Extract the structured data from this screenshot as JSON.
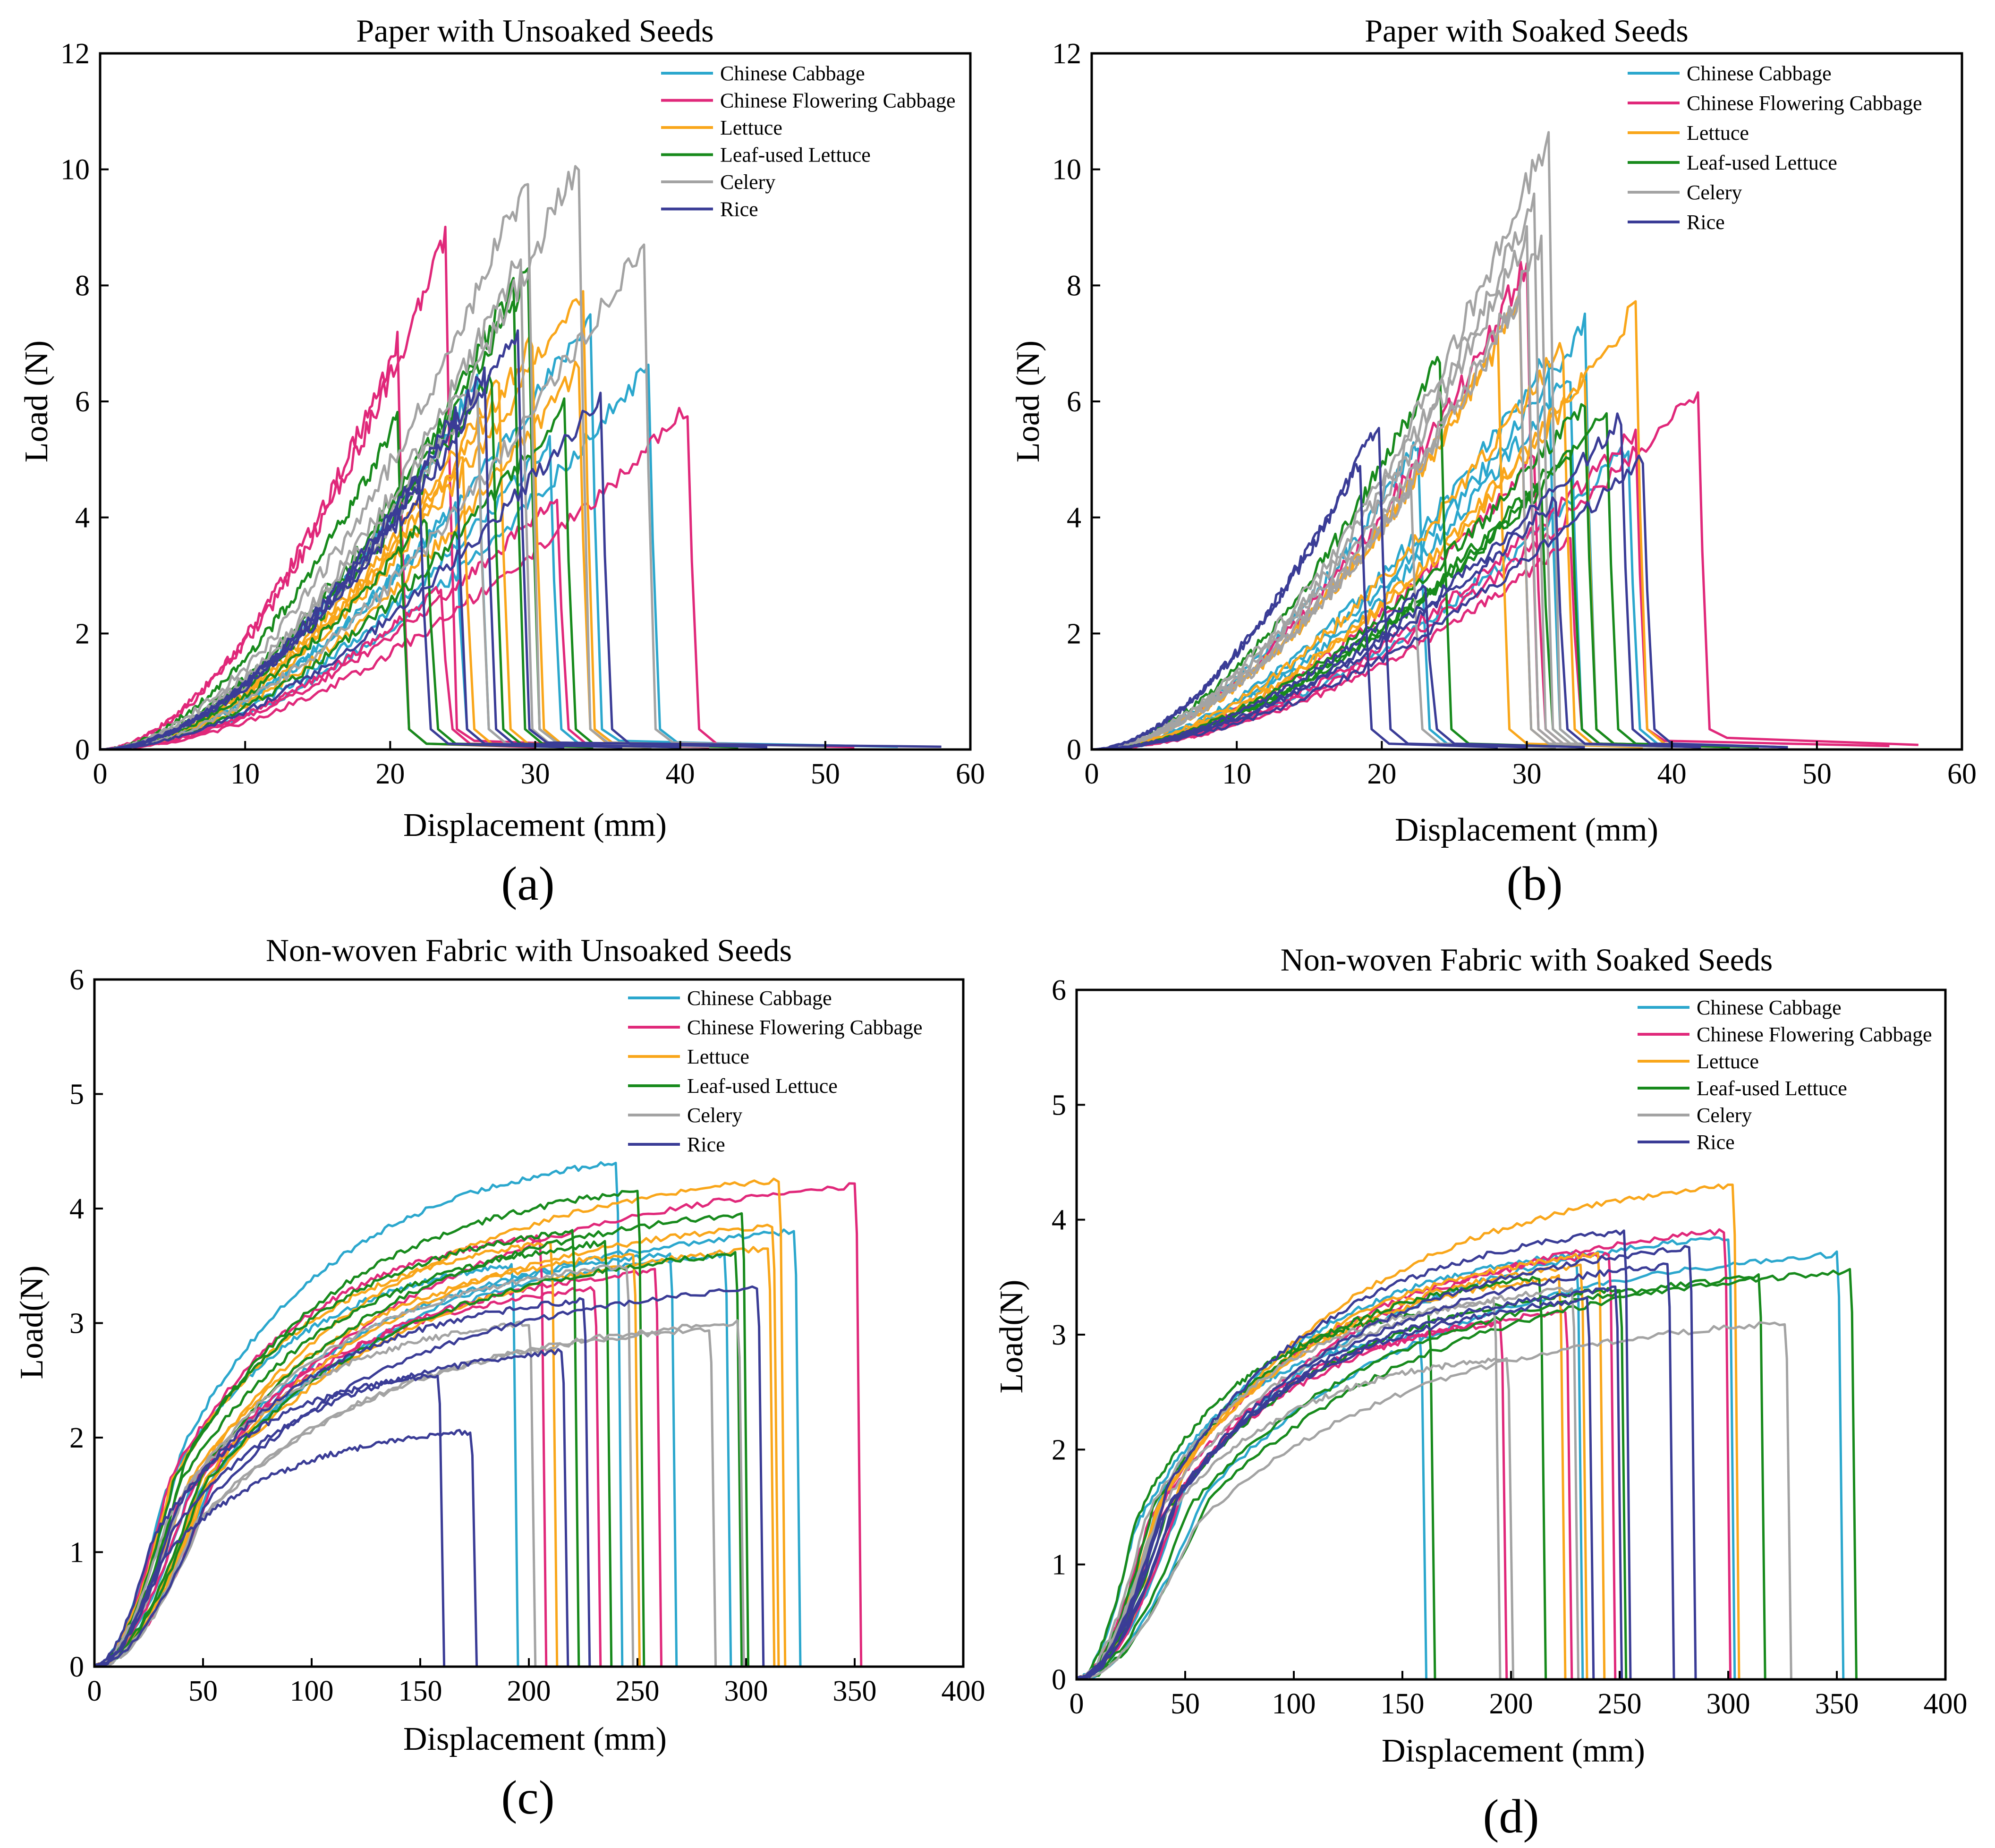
{
  "colors": {
    "Chinese Cabbage": "#2ba7cd",
    "Chinese Flowering Cabbage": "#e0287a",
    "Lettuce": "#f9a61a",
    "Leaf-used Lettuce": "#178a1c",
    "Celery": "#a3a3a3",
    "Rice": "#3a3c96"
  },
  "chart_data": [
    {
      "panel": "(a)",
      "type": "line",
      "title": "Paper with Unsoaked Seeds",
      "xlabel": "Displacement (mm)",
      "ylabel": "Load (N)",
      "xlim": [
        0,
        60
      ],
      "ylim": [
        0,
        12
      ],
      "xticks": [
        0,
        10,
        20,
        30,
        40,
        50,
        60
      ],
      "yticks": [
        0,
        2,
        4,
        6,
        8,
        10,
        12
      ],
      "grid": false,
      "legend_position": "top-right",
      "legend": [
        "Chinese Cabbage",
        "Chinese Flowering Cabbage",
        "Lettuce",
        "Leaf-used Lettuce",
        "Celery",
        "Rice"
      ],
      "series": [
        {
          "group": "Chinese Cabbage",
          "break_x": 33.8,
          "peak": 7.5,
          "tail": 0.15,
          "end_x": 50
        },
        {
          "group": "Chinese Cabbage",
          "break_x": 37.8,
          "peak": 6.6,
          "tail": 0.12,
          "end_x": 55
        },
        {
          "group": "Chinese Cabbage",
          "break_x": 26.0,
          "peak": 6.4,
          "tail": 0.1,
          "end_x": 40
        },
        {
          "group": "Chinese Cabbage",
          "break_x": 24.5,
          "peak": 4.2,
          "tail": 0.1,
          "end_x": 36
        },
        {
          "group": "Chinese Cabbage",
          "break_x": 31.0,
          "peak": 5.3,
          "tail": 0.1,
          "end_x": 42
        },
        {
          "group": "Chinese Flowering Cabbage",
          "break_x": 23.8,
          "peak": 8.8,
          "tail": 0.15,
          "end_x": 36
        },
        {
          "group": "Chinese Flowering Cabbage",
          "break_x": 20.5,
          "peak": 7.0,
          "tail": 0.1,
          "end_x": 30
        },
        {
          "group": "Chinese Flowering Cabbage",
          "break_x": 40.5,
          "peak": 5.9,
          "tail": 0.1,
          "end_x": 52
        },
        {
          "group": "Chinese Flowering Cabbage",
          "break_x": 31.5,
          "peak": 4.4,
          "tail": 0.1,
          "end_x": 42
        },
        {
          "group": "Chinese Flowering Cabbage",
          "break_x": 23.5,
          "peak": 2.8,
          "tail": 0.1,
          "end_x": 34
        },
        {
          "group": "Lettuce",
          "break_x": 33.3,
          "peak": 8.0,
          "tail": 0.12,
          "end_x": 46
        },
        {
          "group": "Lettuce",
          "break_x": 29.8,
          "peak": 7.0,
          "tail": 0.1,
          "end_x": 40
        },
        {
          "group": "Lettuce",
          "break_x": 33.0,
          "peak": 6.6,
          "tail": 0.1,
          "end_x": 44
        },
        {
          "group": "Lettuce",
          "break_x": 27.5,
          "peak": 6.3,
          "tail": 0.1,
          "end_x": 38
        },
        {
          "group": "Lettuce",
          "break_x": 25.0,
          "peak": 5.0,
          "tail": 0.1,
          "end_x": 38
        },
        {
          "group": "Leaf-used Lettuce",
          "break_x": 29.5,
          "peak": 8.2,
          "tail": 0.12,
          "end_x": 42
        },
        {
          "group": "Leaf-used Lettuce",
          "break_x": 28.5,
          "peak": 8.0,
          "tail": 0.1,
          "end_x": 40
        },
        {
          "group": "Leaf-used Lettuce",
          "break_x": 20.5,
          "peak": 5.7,
          "tail": 0.1,
          "end_x": 32
        },
        {
          "group": "Leaf-used Lettuce",
          "break_x": 32.0,
          "peak": 5.9,
          "tail": 0.1,
          "end_x": 44
        },
        {
          "group": "Leaf-used Lettuce",
          "break_x": 27.0,
          "peak": 6.5,
          "tail": 0.1,
          "end_x": 38
        },
        {
          "group": "Leaf-used Lettuce",
          "break_x": 22.5,
          "peak": 4.0,
          "tail": 0.1,
          "end_x": 34
        },
        {
          "group": "Celery",
          "break_x": 33.0,
          "peak": 10.2,
          "tail": 0.12,
          "end_x": 46
        },
        {
          "group": "Celery",
          "break_x": 29.5,
          "peak": 9.9,
          "tail": 0.12,
          "end_x": 42
        },
        {
          "group": "Celery",
          "break_x": 37.5,
          "peak": 8.8,
          "tail": 0.12,
          "end_x": 50
        },
        {
          "group": "Celery",
          "break_x": 29.0,
          "peak": 8.5,
          "tail": 0.1,
          "end_x": 40
        },
        {
          "group": "Celery",
          "break_x": 26.0,
          "peak": 6.2,
          "tail": 0.1,
          "end_x": 38
        },
        {
          "group": "Rice",
          "break_x": 28.8,
          "peak": 7.2,
          "tail": 0.12,
          "end_x": 58
        },
        {
          "group": "Rice",
          "break_x": 34.5,
          "peak": 6.1,
          "tail": 0.1,
          "end_x": 46
        },
        {
          "group": "Rice",
          "break_x": 26.5,
          "peak": 6.5,
          "tail": 0.1,
          "end_x": 40
        },
        {
          "group": "Rice",
          "break_x": 24.5,
          "peak": 5.8,
          "tail": 0.1,
          "end_x": 36
        },
        {
          "group": "Rice",
          "break_x": 22.0,
          "peak": 4.6,
          "tail": 0.1,
          "end_x": 32
        }
      ]
    },
    {
      "panel": "(b)",
      "type": "line",
      "title": "Paper with Soaked Seeds",
      "xlabel": "Displacement (mm)",
      "ylabel": "Load (N)",
      "xlim": [
        0,
        60
      ],
      "ylim": [
        0,
        12
      ],
      "xticks": [
        0,
        10,
        20,
        30,
        40,
        50,
        60
      ],
      "yticks": [
        0,
        2,
        4,
        6,
        8,
        10,
        12
      ],
      "grid": false,
      "legend_position": "top-right",
      "legend": [
        "Chinese Cabbage",
        "Chinese Flowering Cabbage",
        "Lettuce",
        "Leaf-used Lettuce",
        "Celery",
        "Rice"
      ],
      "series": [
        {
          "group": "Chinese Cabbage",
          "break_x": 34.0,
          "peak": 7.3,
          "tail": 0.1,
          "end_x": 44
        },
        {
          "group": "Chinese Cabbage",
          "break_x": 33.0,
          "peak": 6.5,
          "tail": 0.1,
          "end_x": 42
        },
        {
          "group": "Chinese Cabbage",
          "break_x": 22.5,
          "peak": 5.3,
          "tail": 0.1,
          "end_x": 32
        },
        {
          "group": "Chinese Cabbage",
          "break_x": 31.5,
          "peak": 6.8,
          "tail": 0.1,
          "end_x": 42
        },
        {
          "group": "Chinese Cabbage",
          "break_x": 37.0,
          "peak": 5.2,
          "tail": 0.1,
          "end_x": 48
        },
        {
          "group": "Chinese Flowering Cabbage",
          "break_x": 41.8,
          "peak": 6.2,
          "tail": 0.2,
          "end_x": 57
        },
        {
          "group": "Chinese Flowering Cabbage",
          "break_x": 30.0,
          "peak": 8.4,
          "tail": 0.1,
          "end_x": 40
        },
        {
          "group": "Chinese Flowering Cabbage",
          "break_x": 37.5,
          "peak": 5.5,
          "tail": 0.15,
          "end_x": 55
        },
        {
          "group": "Chinese Flowering Cabbage",
          "break_x": 30.5,
          "peak": 5.0,
          "tail": 0.1,
          "end_x": 42
        },
        {
          "group": "Chinese Flowering Cabbage",
          "break_x": 33.0,
          "peak": 3.6,
          "tail": 0.1,
          "end_x": 44
        },
        {
          "group": "Lettuce",
          "break_x": 37.5,
          "peak": 7.6,
          "tail": 0.1,
          "end_x": 48
        },
        {
          "group": "Lettuce",
          "break_x": 29.5,
          "peak": 7.7,
          "tail": 0.1,
          "end_x": 40
        },
        {
          "group": "Lettuce",
          "break_x": 28.0,
          "peak": 7.0,
          "tail": 0.1,
          "end_x": 38
        },
        {
          "group": "Lettuce",
          "break_x": 32.5,
          "peak": 7.0,
          "tail": 0.1,
          "end_x": 42
        },
        {
          "group": "Lettuce",
          "break_x": 34.0,
          "peak": 6.5,
          "tail": 0.1,
          "end_x": 44
        },
        {
          "group": "Leaf-used Lettuce",
          "break_x": 24.0,
          "peak": 6.8,
          "tail": 0.1,
          "end_x": 34
        },
        {
          "group": "Leaf-used Lettuce",
          "break_x": 34.0,
          "peak": 6.0,
          "tail": 0.1,
          "end_x": 44
        },
        {
          "group": "Leaf-used Lettuce",
          "break_x": 33.0,
          "peak": 5.2,
          "tail": 0.1,
          "end_x": 42
        },
        {
          "group": "Leaf-used Lettuce",
          "break_x": 31.0,
          "peak": 4.5,
          "tail": 0.1,
          "end_x": 40
        },
        {
          "group": "Leaf-used Lettuce",
          "break_x": 35.5,
          "peak": 5.8,
          "tail": 0.1,
          "end_x": 46
        },
        {
          "group": "Celery",
          "break_x": 31.5,
          "peak": 10.6,
          "tail": 0.1,
          "end_x": 42
        },
        {
          "group": "Celery",
          "break_x": 30.5,
          "peak": 9.5,
          "tail": 0.1,
          "end_x": 40
        },
        {
          "group": "Celery",
          "break_x": 30.0,
          "peak": 8.9,
          "tail": 0.1,
          "end_x": 40
        },
        {
          "group": "Celery",
          "break_x": 31.0,
          "peak": 8.7,
          "tail": 0.1,
          "end_x": 42
        },
        {
          "group": "Celery",
          "break_x": 29.5,
          "peak": 7.8,
          "tail": 0.1,
          "end_x": 40
        },
        {
          "group": "Celery",
          "break_x": 22.0,
          "peak": 4.5,
          "tail": 0.1,
          "end_x": 32
        },
        {
          "group": "Rice",
          "break_x": 19.8,
          "peak": 5.7,
          "tail": 0.1,
          "end_x": 30
        },
        {
          "group": "Rice",
          "break_x": 18.5,
          "peak": 5.0,
          "tail": 0.1,
          "end_x": 28
        },
        {
          "group": "Rice",
          "break_x": 36.5,
          "peak": 5.7,
          "tail": 0.1,
          "end_x": 48
        },
        {
          "group": "Rice",
          "break_x": 38.0,
          "peak": 5.0,
          "tail": 0.1,
          "end_x": 48
        },
        {
          "group": "Rice",
          "break_x": 32.0,
          "peak": 4.3,
          "tail": 0.1,
          "end_x": 42
        },
        {
          "group": "Rice",
          "break_x": 23.0,
          "peak": 2.8,
          "tail": 0.1,
          "end_x": 34
        }
      ]
    },
    {
      "panel": "(c)",
      "type": "line",
      "title": "Non-woven Fabric with Unsoaked Seeds",
      "xlabel": "Displacement (mm)",
      "ylabel": "Load(N)",
      "xlim": [
        0,
        400
      ],
      "ylim": [
        0,
        6
      ],
      "xticks": [
        0,
        50,
        100,
        150,
        200,
        250,
        300,
        350,
        400
      ],
      "yticks": [
        0,
        1,
        2,
        3,
        4,
        5,
        6
      ],
      "grid": false,
      "legend_position": "top-right",
      "legend": [
        "Chinese Cabbage",
        "Chinese Flowering Cabbage",
        "Lettuce",
        "Leaf-used Lettuce",
        "Celery",
        "Rice"
      ],
      "series": [
        {
          "group": "Chinese Cabbage",
          "break_x": 240,
          "peak": 4.4
        },
        {
          "group": "Chinese Cabbage",
          "break_x": 322,
          "peak": 3.8
        },
        {
          "group": "Chinese Cabbage",
          "break_x": 265,
          "peak": 3.6
        },
        {
          "group": "Chinese Cabbage",
          "break_x": 290,
          "peak": 3.6
        },
        {
          "group": "Chinese Cabbage",
          "break_x": 192,
          "peak": 3.5
        },
        {
          "group": "Chinese Flowering Cabbage",
          "break_x": 350,
          "peak": 4.2
        },
        {
          "group": "Chinese Flowering Cabbage",
          "break_x": 258,
          "peak": 3.45
        },
        {
          "group": "Chinese Flowering Cabbage",
          "break_x": 205,
          "peak": 3.75
        },
        {
          "group": "Chinese Flowering Cabbage",
          "break_x": 230,
          "peak": 3.3
        },
        {
          "group": "Lettuce",
          "break_x": 315,
          "peak": 4.25
        },
        {
          "group": "Lettuce",
          "break_x": 312,
          "peak": 3.85
        },
        {
          "group": "Lettuce",
          "break_x": 210,
          "peak": 3.7
        },
        {
          "group": "Lettuce",
          "break_x": 248,
          "peak": 3.6
        },
        {
          "group": "Lettuce",
          "break_x": 310,
          "peak": 3.65
        },
        {
          "group": "Leaf-used Lettuce",
          "break_x": 250,
          "peak": 4.15
        },
        {
          "group": "Leaf-used Lettuce",
          "break_x": 298,
          "peak": 3.95
        },
        {
          "group": "Leaf-used Lettuce",
          "break_x": 220,
          "peak": 3.8
        },
        {
          "group": "Leaf-used Lettuce",
          "break_x": 235,
          "peak": 3.7
        },
        {
          "group": "Leaf-used Lettuce",
          "break_x": 295,
          "peak": 3.6
        },
        {
          "group": "Celery",
          "break_x": 296,
          "peak": 3.0
        },
        {
          "group": "Celery",
          "break_x": 245,
          "peak": 3.5
        },
        {
          "group": "Celery",
          "break_x": 200,
          "peak": 3.0
        },
        {
          "group": "Celery",
          "break_x": 283,
          "peak": 2.95
        },
        {
          "group": "Rice",
          "break_x": 158,
          "peak": 2.55
        },
        {
          "group": "Rice",
          "break_x": 173,
          "peak": 2.05
        },
        {
          "group": "Rice",
          "break_x": 215,
          "peak": 2.75
        },
        {
          "group": "Rice",
          "break_x": 305,
          "peak": 3.3
        },
        {
          "group": "Rice",
          "break_x": 225,
          "peak": 3.2
        }
      ]
    },
    {
      "panel": "(d)",
      "type": "line",
      "title": "Non-woven Fabric with Soaked Seeds",
      "xlabel": "Displacement (mm)",
      "ylabel": "Load(N)",
      "xlim": [
        0,
        400
      ],
      "ylim": [
        0,
        6
      ],
      "xticks": [
        0,
        50,
        100,
        150,
        200,
        250,
        300,
        350,
        400
      ],
      "yticks": [
        0,
        1,
        2,
        3,
        4,
        5,
        6
      ],
      "grid": false,
      "legend_position": "top-right",
      "legend": [
        "Chinese Cabbage",
        "Chinese Flowering Cabbage",
        "Lettuce",
        "Leaf-used Lettuce",
        "Celery",
        "Rice"
      ],
      "series": [
        {
          "group": "Chinese Cabbage",
          "break_x": 350,
          "peak": 3.7
        },
        {
          "group": "Chinese Cabbage",
          "break_x": 300,
          "peak": 3.85
        },
        {
          "group": "Chinese Cabbage",
          "break_x": 158,
          "peak": 3.0
        },
        {
          "group": "Chinese Cabbage",
          "break_x": 230,
          "peak": 3.7
        },
        {
          "group": "Chinese Flowering Cabbage",
          "break_x": 298,
          "peak": 3.9
        },
        {
          "group": "Chinese Flowering Cabbage",
          "break_x": 225,
          "peak": 3.2
        },
        {
          "group": "Chinese Flowering Cabbage",
          "break_x": 245,
          "peak": 3.7
        },
        {
          "group": "Chinese Flowering Cabbage",
          "break_x": 195,
          "peak": 3.1
        },
        {
          "group": "Lettuce",
          "break_x": 302,
          "peak": 4.3
        },
        {
          "group": "Lettuce",
          "break_x": 232,
          "peak": 3.6
        },
        {
          "group": "Lettuce",
          "break_x": 240,
          "peak": 3.7
        },
        {
          "group": "Lettuce",
          "break_x": 222,
          "peak": 3.5
        },
        {
          "group": "Leaf-used Lettuce",
          "break_x": 356,
          "peak": 3.55
        },
        {
          "group": "Leaf-used Lettuce",
          "break_x": 314,
          "peak": 3.5
        },
        {
          "group": "Leaf-used Lettuce",
          "break_x": 162,
          "peak": 3.2
        },
        {
          "group": "Leaf-used Lettuce",
          "break_x": 213,
          "peak": 3.5
        },
        {
          "group": "Leaf-used Lettuce",
          "break_x": 250,
          "peak": 3.4
        },
        {
          "group": "Celery",
          "break_x": 326,
          "peak": 3.1
        },
        {
          "group": "Celery",
          "break_x": 198,
          "peak": 2.8
        },
        {
          "group": "Celery",
          "break_x": 192,
          "peak": 3.3
        },
        {
          "group": "Celery",
          "break_x": 228,
          "peak": 3.4
        },
        {
          "group": "Rice",
          "break_x": 252,
          "peak": 3.9
        },
        {
          "group": "Rice",
          "break_x": 282,
          "peak": 3.75
        },
        {
          "group": "Rice",
          "break_x": 272,
          "peak": 3.6
        },
        {
          "group": "Rice",
          "break_x": 248,
          "peak": 3.4
        },
        {
          "group": "Rice",
          "break_x": 235,
          "peak": 3.3
        }
      ]
    }
  ]
}
